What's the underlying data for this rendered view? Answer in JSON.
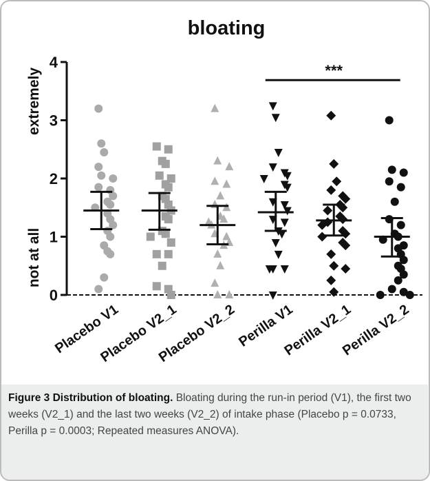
{
  "chart_data": {
    "type": "dot",
    "title": "bloating",
    "y_label_top": "extremely",
    "y_label_bottom": "not at all",
    "ylim": [
      0,
      4
    ],
    "yticks": [
      0,
      1,
      2,
      3,
      4
    ],
    "categories": [
      "Placebo V1",
      "Placebo V2_1",
      "Placebo V2_2",
      "Perilla V1",
      "Perilla V2_1",
      "Perilla V2_2"
    ],
    "groups": [
      {
        "marker": "circle",
        "color": "#aaaaaa",
        "mean": 1.45,
        "upper": 1.77,
        "lower": 1.13,
        "values": [
          3.2,
          2.6,
          2.45,
          2.2,
          2.05,
          2.0,
          1.85,
          1.8,
          1.7,
          1.6,
          1.55,
          1.5,
          1.4,
          1.3,
          1.2,
          1.1,
          1.0,
          0.85,
          0.75,
          0.7,
          0.3,
          0.1
        ]
      },
      {
        "marker": "square",
        "color": "#a0a0a0",
        "mean": 1.45,
        "upper": 1.75,
        "lower": 1.12,
        "values": [
          2.55,
          2.5,
          2.3,
          2.25,
          2.05,
          2.0,
          1.9,
          1.85,
          1.7,
          1.65,
          1.55,
          1.45,
          1.35,
          1.3,
          1.1,
          1.05,
          1.0,
          0.9,
          0.7,
          0.7,
          0.5,
          0.15,
          0.1,
          0.0
        ]
      },
      {
        "marker": "triangle",
        "color": "#b0b0b0",
        "mean": 1.2,
        "upper": 1.53,
        "lower": 0.87,
        "values": [
          3.2,
          2.3,
          2.2,
          1.95,
          1.9,
          1.7,
          1.55,
          1.5,
          1.35,
          1.3,
          1.25,
          1.2,
          1.05,
          1.0,
          0.9,
          0.85,
          0.7,
          0.5,
          0.2,
          0.0,
          0.0
        ]
      },
      {
        "marker": "triangle-down",
        "color": "#111111",
        "mean": 1.42,
        "upper": 1.77,
        "lower": 1.1,
        "values": [
          3.25,
          3.05,
          2.45,
          2.2,
          2.1,
          2.05,
          2.0,
          1.9,
          1.85,
          1.6,
          1.55,
          1.45,
          1.3,
          1.25,
          1.1,
          1.05,
          0.9,
          0.7,
          0.45,
          0.45,
          0.45,
          0.0
        ]
      },
      {
        "marker": "diamond",
        "color": "#111111",
        "mean": 1.28,
        "upper": 1.55,
        "lower": 1.02,
        "values": [
          3.08,
          2.25,
          1.95,
          1.8,
          1.7,
          1.65,
          1.55,
          1.5,
          1.45,
          1.35,
          1.3,
          1.25,
          1.2,
          1.1,
          1.05,
          1.0,
          0.9,
          0.85,
          0.7,
          0.5,
          0.45,
          0.25,
          0.05
        ]
      },
      {
        "marker": "circle",
        "color": "#111111",
        "mean": 1.0,
        "upper": 1.32,
        "lower": 0.66,
        "values": [
          3.0,
          2.15,
          2.1,
          1.95,
          1.85,
          1.6,
          1.3,
          1.2,
          1.05,
          1.0,
          0.95,
          0.85,
          0.8,
          0.7,
          0.6,
          0.5,
          0.45,
          0.35,
          0.25,
          0.1,
          0.05,
          0.0,
          0.0
        ]
      }
    ],
    "significance": {
      "label": "***",
      "from": 3,
      "to": 5,
      "y": 3.69
    }
  },
  "caption": {
    "title": "Figure 3 Distribution of bloating.",
    "text": "Bloating during the run-in period (V1), the first two weeks (V2_1) and the last two weeks (V2_2) of intake phase (Placebo p = 0.0733, Perilla p = 0.0003; Repeated measures ANOVA)."
  }
}
